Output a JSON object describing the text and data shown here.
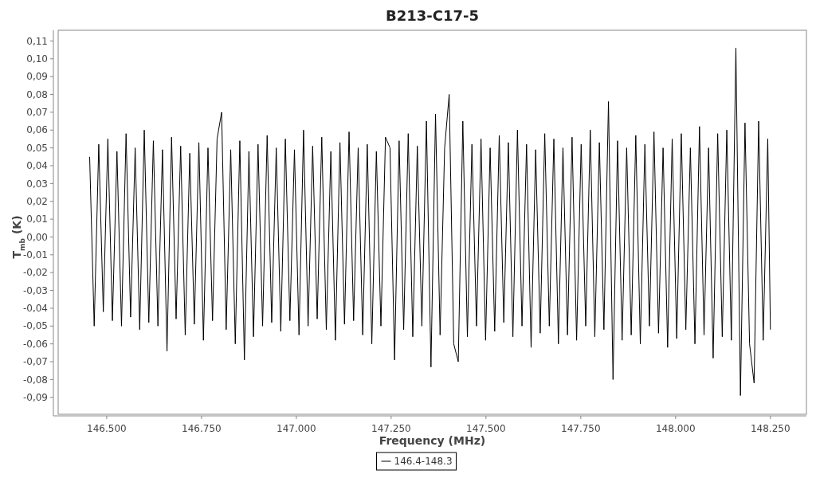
{
  "chart_data": {
    "type": "line",
    "title": "B213-C17-5",
    "xlabel": "Frequency (MHz)",
    "ylabel": "T$_{mb}$ (K)",
    "xlim": [
      146372,
      148345
    ],
    "ylim": [
      -0.0995,
      0.116
    ],
    "xticks": [
      {
        "value": 146500,
        "label": "146.500"
      },
      {
        "value": 146750,
        "label": "146.750"
      },
      {
        "value": 147000,
        "label": "147.000"
      },
      {
        "value": 147250,
        "label": "147.250"
      },
      {
        "value": 147500,
        "label": "147.500"
      },
      {
        "value": 147750,
        "label": "147.750"
      },
      {
        "value": 148000,
        "label": "148.000"
      },
      {
        "value": 148250,
        "label": "148.250"
      }
    ],
    "yticks": [
      {
        "value": 0.11,
        "label": "0,11"
      },
      {
        "value": 0.1,
        "label": "0,10"
      },
      {
        "value": 0.09,
        "label": "0,09"
      },
      {
        "value": 0.08,
        "label": "0,08"
      },
      {
        "value": 0.07,
        "label": "0,07"
      },
      {
        "value": 0.06,
        "label": "0,06"
      },
      {
        "value": 0.05,
        "label": "0,05"
      },
      {
        "value": 0.04,
        "label": "0,04"
      },
      {
        "value": 0.03,
        "label": "0,03"
      },
      {
        "value": 0.02,
        "label": "0,02"
      },
      {
        "value": 0.01,
        "label": "0,01"
      },
      {
        "value": 0,
        "label": "0,00"
      },
      {
        "value": -0.01,
        "label": "-0,01"
      },
      {
        "value": -0.02,
        "label": "-0,02"
      },
      {
        "value": -0.03,
        "label": "-0,03"
      },
      {
        "value": -0.04,
        "label": "-0,04"
      },
      {
        "value": -0.05,
        "label": "-0,05"
      },
      {
        "value": -0.06,
        "label": "-0,06"
      },
      {
        "value": -0.07,
        "label": "-0,07"
      },
      {
        "value": -0.08,
        "label": "-0,08"
      },
      {
        "value": -0.09,
        "label": "-0,09"
      }
    ],
    "grid": false,
    "legend": "bottom",
    "marker": "none",
    "line_style": "solid",
    "x": [
      146455,
      146467,
      146479,
      146491,
      146503,
      146515,
      146527,
      146539,
      146551,
      146563,
      146575,
      146587,
      146599,
      146611,
      146623,
      146635,
      146647,
      146659,
      146671,
      146683,
      146695,
      146707,
      146719,
      146731,
      146743,
      146755,
      146767,
      146779,
      146791,
      146803,
      146815,
      146827,
      146839,
      146851,
      146863,
      146875,
      146887,
      146899,
      146911,
      146923,
      146935,
      146947,
      146959,
      146971,
      146983,
      146995,
      147007,
      147019,
      147031,
      147043,
      147055,
      147067,
      147079,
      147091,
      147103,
      147115,
      147127,
      147139,
      147151,
      147163,
      147175,
      147187,
      147199,
      147211,
      147223,
      147235,
      147247,
      147259,
      147271,
      147283,
      147295,
      147307,
      147319,
      147331,
      147343,
      147355,
      147367,
      147379,
      147391,
      147403,
      147415,
      147427,
      147439,
      147451,
      147463,
      147475,
      147487,
      147499,
      147511,
      147523,
      147535,
      147547,
      147559,
      147571,
      147583,
      147595,
      147607,
      147619,
      147631,
      147643,
      147655,
      147667,
      147679,
      147691,
      147703,
      147715,
      147727,
      147739,
      147751,
      147763,
      147775,
      147787,
      147799,
      147811,
      147823,
      147835,
      147847,
      147859,
      147871,
      147883,
      147895,
      147907,
      147919,
      147931,
      147943,
      147955,
      147967,
      147979,
      147991,
      148003,
      148015,
      148027,
      148039,
      148051,
      148063,
      148075,
      148087,
      148099,
      148111,
      148123,
      148135,
      148147,
      148159,
      148171,
      148183,
      148195,
      148207,
      148219,
      148231,
      148243,
      148250
    ],
    "series": [
      {
        "name": "146.4-148.3",
        "color": "#000000",
        "values": [
          0.045,
          -0.05,
          0.052,
          -0.042,
          0.055,
          -0.047,
          0.048,
          -0.05,
          0.058,
          -0.045,
          0.05,
          -0.052,
          0.06,
          -0.048,
          0.054,
          -0.05,
          0.049,
          -0.064,
          0.056,
          -0.046,
          0.051,
          -0.055,
          0.047,
          -0.049,
          0.053,
          -0.058,
          0.05,
          -0.047,
          0.055,
          0.07,
          -0.052,
          0.049,
          -0.06,
          0.054,
          -0.069,
          0.048,
          -0.056,
          0.052,
          -0.05,
          0.057,
          -0.048,
          0.05,
          -0.053,
          0.055,
          -0.047,
          0.049,
          -0.055,
          0.06,
          -0.05,
          0.051,
          -0.046,
          0.056,
          -0.052,
          0.048,
          -0.058,
          0.053,
          -0.049,
          0.059,
          -0.047,
          0.05,
          -0.055,
          0.052,
          -0.06,
          0.048,
          -0.05,
          0.056,
          0.05,
          -0.069,
          0.054,
          -0.052,
          0.058,
          -0.056,
          0.051,
          -0.05,
          0.065,
          -0.073,
          0.069,
          -0.055,
          0.05,
          0.08,
          -0.06,
          -0.07,
          0.065,
          -0.056,
          0.052,
          -0.05,
          0.055,
          -0.058,
          0.05,
          -0.053,
          0.057,
          -0.048,
          0.053,
          -0.056,
          0.06,
          -0.05,
          0.052,
          -0.062,
          0.049,
          -0.054,
          0.058,
          -0.05,
          0.055,
          -0.06,
          0.05,
          -0.055,
          0.056,
          -0.058,
          0.052,
          -0.05,
          0.06,
          -0.056,
          0.053,
          -0.052,
          0.076,
          -0.08,
          0.054,
          -0.058,
          0.05,
          -0.055,
          0.057,
          -0.06,
          0.052,
          -0.05,
          0.059,
          -0.054,
          0.05,
          -0.062,
          0.055,
          -0.057,
          0.058,
          -0.052,
          0.05,
          -0.06,
          0.062,
          -0.055,
          0.05,
          -0.068,
          0.058,
          -0.056,
          0.06,
          -0.058,
          0.106,
          -0.089,
          0.064,
          -0.06,
          -0.082,
          0.065,
          -0.058,
          0.055,
          -0.052
        ]
      }
    ]
  }
}
